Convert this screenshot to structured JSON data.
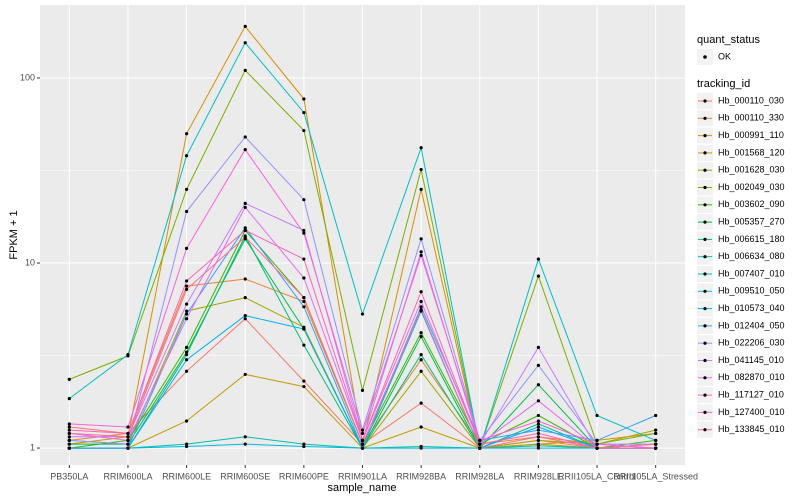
{
  "chart_data": {
    "type": "line",
    "y_label": "FPKM + 1",
    "x_label": "sample_name",
    "log_y": true,
    "grid": true,
    "categories": [
      "PB350LA",
      "RRIM600LA",
      "RRIM600LE",
      "RRIM600SE",
      "RRIM600PE",
      "RRIM901LA",
      "RRIM928BA",
      "RRIM928LA",
      "RRIM928LE",
      "RRII105LA_Control",
      "RRII105LA_Stressed"
    ],
    "ylim": [
      0.81,
      248
    ],
    "yticks": [
      1,
      10,
      100
    ],
    "point_legend": {
      "title": "quant_status",
      "labels": [
        "OK"
      ],
      "color": "#000000"
    },
    "legend_title": "tracking_id",
    "series": [
      {
        "name": "Hb_000110_030",
        "color": "#F8766D",
        "values": [
          1.3,
          1.2,
          2.6,
          5,
          2.3,
          1.05,
          1.75,
          1.0,
          1.1,
          1.0,
          1.05
        ]
      },
      {
        "name": "Hb_000110_330",
        "color": "#EA8331",
        "values": [
          1.1,
          1.2,
          7.5,
          8.2,
          6.2,
          1.05,
          3.0,
          1.05,
          1.15,
          1.05,
          1.0
        ]
      },
      {
        "name": "Hb_000991_110",
        "color": "#D89000",
        "values": [
          1.05,
          1.15,
          50,
          190,
          77,
          1.05,
          25,
          1.0,
          1.05,
          1.1,
          1.2
        ]
      },
      {
        "name": "Hb_001568_120",
        "color": "#C09B00",
        "values": [
          1.0,
          1.0,
          1.4,
          2.5,
          2.15,
          1.0,
          1.3,
          1.0,
          1.05,
          1.0,
          1.0
        ]
      },
      {
        "name": "Hb_001628_030",
        "color": "#A3A500",
        "values": [
          1.1,
          1.05,
          5.5,
          6.5,
          4.5,
          1.0,
          2.6,
          1.0,
          1.1,
          1.05,
          1.25
        ]
      },
      {
        "name": "Hb_002049_030",
        "color": "#7CAE00",
        "values": [
          2.35,
          3.15,
          25,
          110,
          52,
          2.05,
          32,
          1.0,
          8.5,
          1.05,
          1.2
        ]
      },
      {
        "name": "Hb_003602_090",
        "color": "#39B600",
        "values": [
          1.0,
          1.1,
          3.5,
          15,
          6.5,
          1.05,
          4.2,
          1.05,
          1.5,
          1.0,
          1.1
        ]
      },
      {
        "name": "Hb_005357_270",
        "color": "#00BB4E",
        "values": [
          1.05,
          1.05,
          3.3,
          13.5,
          4.4,
          1.0,
          4.0,
          1.0,
          2.2,
          1.0,
          1.05
        ]
      },
      {
        "name": "Hb_006615_180",
        "color": "#00BF7D",
        "values": [
          1.0,
          1.0,
          3.2,
          14,
          3.6,
          1.0,
          3.2,
          1.0,
          1.35,
          1.0,
          1.0
        ]
      },
      {
        "name": "Hb_006634_080",
        "color": "#00C1A3",
        "values": [
          1.0,
          1.0,
          1.05,
          1.15,
          1.05,
          1.0,
          1.02,
          1.0,
          1.03,
          1.0,
          1.0
        ]
      },
      {
        "name": "Hb_007407_010",
        "color": "#00BFC4",
        "values": [
          1.85,
          3.2,
          38,
          155,
          65,
          5.3,
          42,
          1.0,
          10.5,
          1.5,
          1.1
        ]
      },
      {
        "name": "Hb_009510_050",
        "color": "#00BAE0",
        "values": [
          1.0,
          1.0,
          1.02,
          1.05,
          1.02,
          1.0,
          1.0,
          1.0,
          1.0,
          1.0,
          1.0
        ]
      },
      {
        "name": "Hb_010573_040",
        "color": "#00B0F6",
        "values": [
          1.0,
          1.0,
          3.0,
          5.2,
          4.4,
          1.0,
          5.5,
          1.0,
          1.3,
          1.0,
          1.0
        ]
      },
      {
        "name": "Hb_012404_050",
        "color": "#35A2FF",
        "values": [
          1.0,
          1.0,
          5.3,
          15.5,
          5.8,
          1.0,
          5.8,
          1.1,
          1.25,
          1.1,
          1.5
        ]
      },
      {
        "name": "Hb_022206_030",
        "color": "#9590FF",
        "values": [
          1.1,
          1.05,
          19,
          48,
          22,
          1.25,
          13.5,
          1.1,
          2.8,
          1.05,
          1.05
        ]
      },
      {
        "name": "Hb_041145_010",
        "color": "#C77CFF",
        "values": [
          1.15,
          1.15,
          6,
          21,
          15,
          1.1,
          11.5,
          1.05,
          3.5,
          1.0,
          1.0
        ]
      },
      {
        "name": "Hb_082870_010",
        "color": "#E76BF3",
        "values": [
          1.2,
          1.1,
          5,
          20,
          8.3,
          1.1,
          6.2,
          1.05,
          1.8,
          1.0,
          1.05
        ]
      },
      {
        "name": "Hb_117127_010",
        "color": "#FA62DB",
        "values": [
          1.35,
          1.3,
          12,
          41,
          14.5,
          1.2,
          11,
          1.1,
          1.4,
          1.05,
          1.0
        ]
      },
      {
        "name": "Hb_127400_010",
        "color": "#FF62BC",
        "values": [
          1.25,
          1.2,
          8,
          15,
          10.5,
          1.1,
          7,
          1.05,
          1.2,
          1.0,
          1.0
        ]
      },
      {
        "name": "Hb_133845_010",
        "color": "#FF6C91",
        "values": [
          1.2,
          1.15,
          7.2,
          13.8,
          6.5,
          1.05,
          5.6,
          1.0,
          1.15,
          1.0,
          1.05
        ]
      }
    ]
  }
}
